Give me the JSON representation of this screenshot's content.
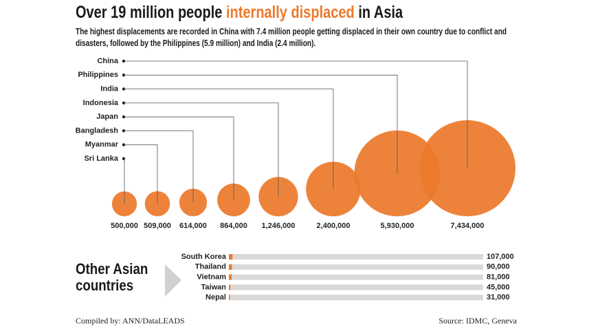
{
  "header": {
    "title": [
      {
        "text": "Over 19 million people"
      },
      {
        "text": "internally displaced",
        "color": "#ec7a2c"
      },
      {
        "text": "in Asia"
      }
    ],
    "subtitle": "The highest displacements are recorded in China with 7.4 million people getting displaced in their own country due to conflict and disasters, followed by the Philippines (5.9 million) and India (2.4 million)."
  },
  "chart_data": [
    {
      "type": "bubble",
      "color": "#ec7a2c",
      "categories": [
        "China",
        "Philippines",
        "India",
        "Indonesia",
        "Japan",
        "Bangladesh",
        "Myanmar",
        "Sri Lanka"
      ],
      "values": [
        7434000,
        5930000,
        2400000,
        1246000,
        864000,
        614000,
        509000,
        500000
      ],
      "value_labels": [
        "7,434,000",
        "5,930,000",
        "2,400,000",
        "1,246,000",
        "864,000",
        "614,000",
        "509,000",
        "500,000"
      ]
    },
    {
      "type": "hbar",
      "title": "Other Asian countries",
      "color": "#ec7a2c",
      "track_color": "#d9d9d9",
      "categories": [
        "South Korea",
        "Thailand",
        "Vietnam",
        "Taiwan",
        "Nepal"
      ],
      "values": [
        107000,
        90000,
        81000,
        45000,
        31000
      ],
      "value_labels": [
        "107,000",
        "90,000",
        "81,000",
        "45,000",
        "31,000"
      ],
      "xlim": [
        0,
        7434000
      ]
    }
  ],
  "footer": {
    "left": "Compiled by: ANN/DataLEADS",
    "right": "Source: IDMC, Geneva"
  }
}
